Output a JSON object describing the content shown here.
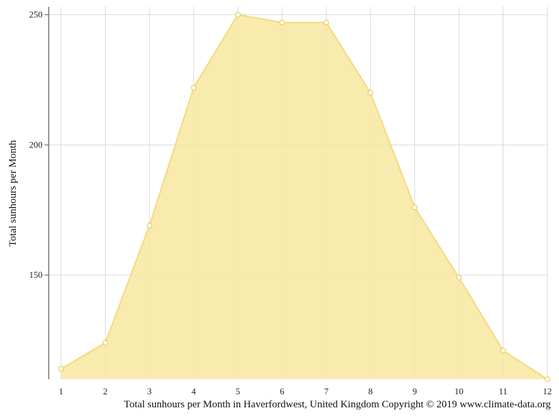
{
  "chart_data": {
    "type": "area",
    "x": [
      1,
      2,
      3,
      4,
      5,
      6,
      7,
      8,
      9,
      10,
      11,
      12
    ],
    "values": [
      114,
      124,
      169,
      222,
      250,
      247,
      247,
      220,
      176,
      149,
      121,
      110
    ],
    "ylabel": "Total sunhours per Month",
    "xlabel": "",
    "ylim": [
      110,
      253
    ],
    "yticks": [
      150,
      200,
      250
    ],
    "grid": true,
    "colors": {
      "fill": "#f8e6a0",
      "stroke": "#f2da7e",
      "point_fill": "#ffffff",
      "point_stroke": "#ecd060",
      "grid": "#d8d8d8",
      "axis": "#555555"
    }
  },
  "caption": "Total sunhours per Month in Haverfordwest, United Kingdom Copyright © 2019 www.climate-data.org"
}
